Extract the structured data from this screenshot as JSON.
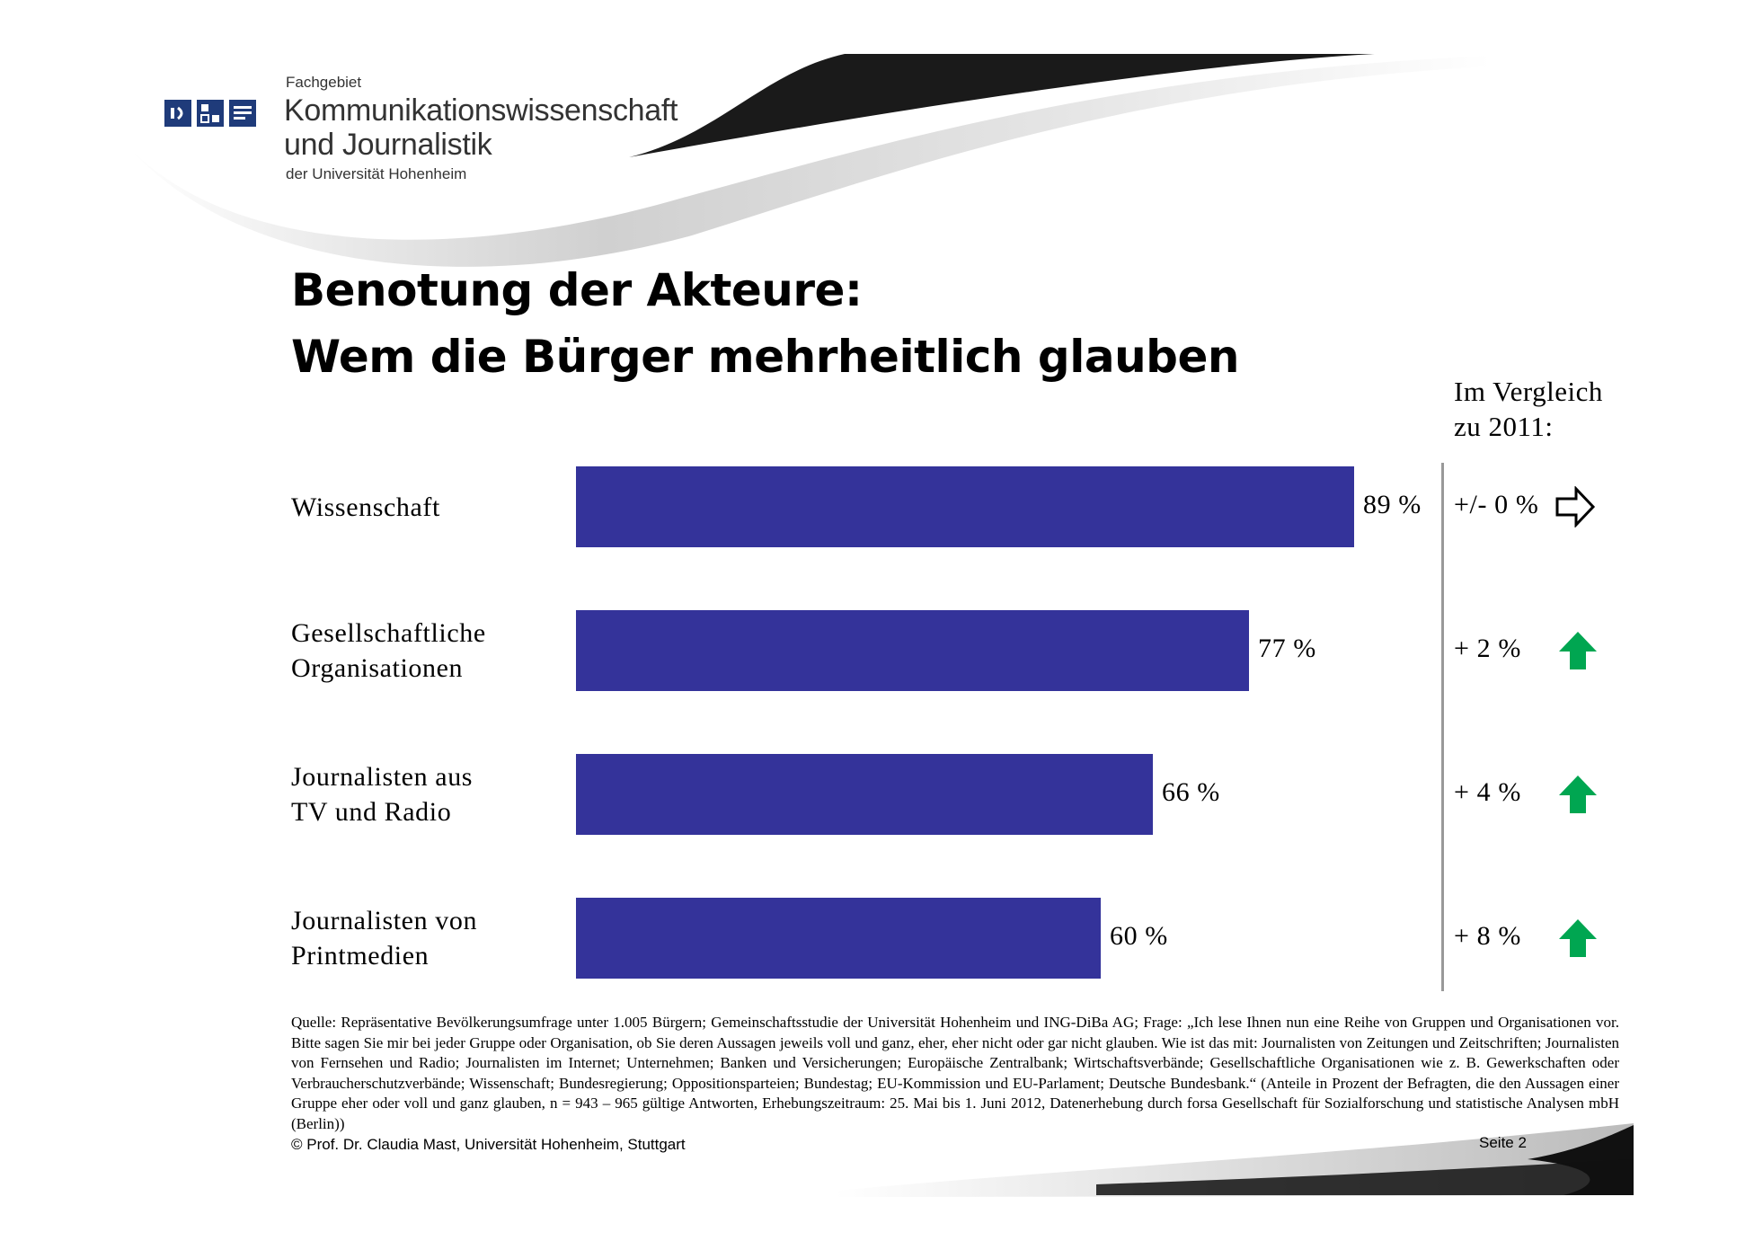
{
  "header": {
    "dept_prefix": "Fachgebiet",
    "dept_line1": "Kommunikationswissenschaft",
    "dept_line2": "und Journalistik",
    "university": "der Universität Hohenheim"
  },
  "title": {
    "line1": "Benotung der Akteure:",
    "line2": "Wem die Bürger mehrheitlich glauben"
  },
  "comparison_header": {
    "line1": "Im Vergleich",
    "line2": "zu 2011:"
  },
  "colors": {
    "bar": "#34339a",
    "arrow_up": "#00a651",
    "divider": "#999999"
  },
  "chart_data": {
    "type": "bar",
    "orientation": "horizontal",
    "categories": [
      "Wissenschaft",
      "Gesellschaftliche Organisationen",
      "Journalisten aus TV und Radio",
      "Journalisten von Printmedien"
    ],
    "category_lines": [
      [
        "Wissenschaft"
      ],
      [
        "Gesellschaftliche",
        "Organisationen"
      ],
      [
        "Journalisten aus",
        "TV und Radio"
      ],
      [
        "Journalisten von",
        "Printmedien"
      ]
    ],
    "values": [
      89,
      77,
      66,
      60
    ],
    "value_labels": [
      "89 %",
      "77 %",
      "66 %",
      "60 %"
    ],
    "unit": "%",
    "xlim": [
      0,
      100
    ],
    "change_vs_2011": [
      {
        "label": "+/- 0 %",
        "direction": "neutral",
        "icon": "arrow-right-outline-icon"
      },
      {
        "label": "+ 2 %",
        "direction": "up",
        "icon": "arrow-up-green-icon"
      },
      {
        "label": "+ 4 %",
        "direction": "up",
        "icon": "arrow-up-green-icon"
      },
      {
        "label": "+ 8 %",
        "direction": "up",
        "icon": "arrow-up-green-icon"
      }
    ]
  },
  "footer": {
    "source": "Quelle: Repräsentative Bevölkerungsumfrage unter 1.005 Bürgern; Gemeinschaftsstudie der Universität Hohenheim und ING-DiBa AG; Frage: „Ich lese Ihnen nun eine Reihe von Gruppen und Organisationen vor. Bitte sagen Sie mir bei jeder Gruppe oder Organisation, ob Sie deren Aussagen jeweils voll und ganz, eher, eher nicht oder gar nicht glauben. Wie ist das mit: Journalisten von Zeitungen und Zeitschriften; Journalisten von Fernsehen und Radio; Journalisten im Internet; Unternehmen; Banken und Versicherungen; Europäische Zentralbank; Wirtschaftsverbände; Gesellschaftliche Organisationen wie z. B. Gewerkschaften oder Verbraucherschutzverbände; Wissenschaft; Bundesregierung; Oppositionsparteien; Bundestag; EU-Kommission und EU-Parlament; Deutsche Bundesbank.“ (Anteile in Prozent der Befragten, die den Aussagen einer Gruppe eher oder voll und ganz glauben, n = 943 – 965 gültige Antworten, Erhebungszeitraum: 25. Mai bis 1. Juni 2012, Datenerhebung durch forsa Gesellschaft für Sozialforschung und statistische Analysen mbH (Berlin))",
    "copyright": "© Prof. Dr. Claudia Mast, Universität Hohenheim, Stuttgart",
    "page": "Seite  2"
  }
}
